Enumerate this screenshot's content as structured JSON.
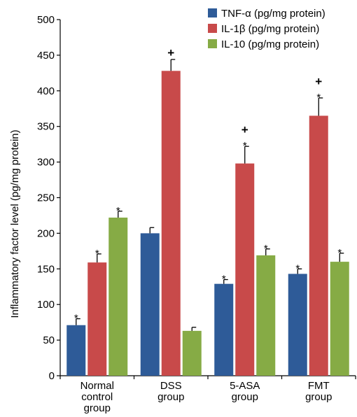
{
  "chart_data": {
    "type": "bar",
    "ylabel": "Inflammatory factor level (pg/mg protein)",
    "xlabel": "",
    "ylim": [
      0,
      500
    ],
    "yticks": [
      0,
      50,
      100,
      150,
      200,
      250,
      300,
      350,
      400,
      450,
      500
    ],
    "categories": [
      [
        "Normal",
        "control",
        "group"
      ],
      [
        "DSS",
        "group"
      ],
      [
        "5-ASA",
        "group"
      ],
      [
        "FMT",
        "group"
      ]
    ],
    "series": [
      {
        "name": "TNF-α (pg/mg protein)",
        "color": "#2e5b98",
        "values": [
          71,
          200,
          129,
          143
        ],
        "errors": [
          9,
          8,
          6,
          7
        ],
        "annotations": [
          [
            "*"
          ],
          [],
          [
            "*"
          ],
          [
            "*"
          ]
        ]
      },
      {
        "name": "IL-1β (pg/mg protein)",
        "color": "#c84a4a",
        "values": [
          159,
          428,
          298,
          365
        ],
        "errors": [
          12,
          16,
          24,
          25
        ],
        "annotations": [
          [
            "*"
          ],
          [
            "+"
          ],
          [
            "*",
            "+"
          ],
          [
            "*",
            "+"
          ]
        ]
      },
      {
        "name": "IL-10 (pg/mg protein)",
        "color": "#86ab45",
        "values": [
          222,
          63,
          169,
          160
        ],
        "errors": [
          9,
          5,
          9,
          12
        ],
        "annotations": [
          [
            "*"
          ],
          [],
          [
            "*"
          ],
          [
            "*"
          ]
        ]
      }
    ],
    "grid": false,
    "legend_position": "top-right"
  }
}
